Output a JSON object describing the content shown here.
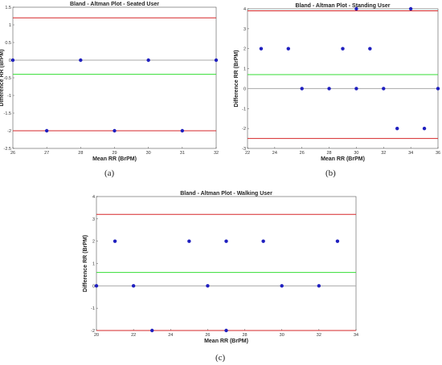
{
  "chart_data": [
    {
      "type": "scatter",
      "title": "Bland - Altman Plot - Seated User",
      "xlabel": "Mean RR (BrPM)",
      "ylabel": "Difference RR (BrPM)",
      "caption": "(a)",
      "xlim": [
        26,
        32
      ],
      "ylim": [
        -2.5,
        1.5
      ],
      "xticks": [
        "26",
        "27",
        "28",
        "29",
        "30",
        "31",
        "32"
      ],
      "yticks": [
        "1.5",
        "1",
        "0.5",
        "0",
        "-0.5",
        "-1",
        "-1.5",
        "-2",
        "-2.5"
      ],
      "points": [
        [
          26,
          0
        ],
        [
          28,
          0
        ],
        [
          30,
          0
        ],
        [
          32,
          0
        ],
        [
          27,
          -2
        ],
        [
          29,
          -2
        ],
        [
          31,
          -2
        ]
      ],
      "hlines": [
        {
          "y": 1.2,
          "color": "#d62728"
        },
        {
          "y": 0,
          "color": "#aaaaaa"
        },
        {
          "y": -0.4,
          "color": "#33dd33"
        },
        {
          "y": -2,
          "color": "#d62728"
        }
      ]
    },
    {
      "type": "scatter",
      "title": "Bland - Altman Plot - Standing User",
      "xlabel": "Mean RR (BrPM)",
      "ylabel": "Difference RR (BrPM)",
      "caption": "(b)",
      "xlim": [
        22,
        36
      ],
      "ylim": [
        -3,
        4
      ],
      "xticks": [
        "22",
        "24",
        "26",
        "28",
        "30",
        "32",
        "34",
        "36"
      ],
      "yticks": [
        "4",
        "3",
        "2",
        "1",
        "0",
        "-1",
        "-2",
        "-3"
      ],
      "points": [
        [
          23,
          2
        ],
        [
          25,
          2
        ],
        [
          29,
          2
        ],
        [
          31,
          2
        ],
        [
          30,
          4
        ],
        [
          34,
          4
        ],
        [
          26,
          0
        ],
        [
          28,
          0
        ],
        [
          30,
          0
        ],
        [
          32,
          0
        ],
        [
          36,
          0
        ],
        [
          33,
          -2
        ],
        [
          35,
          -2
        ]
      ],
      "hlines": [
        {
          "y": 3.9,
          "color": "#d62728"
        },
        {
          "y": 0,
          "color": "#aaaaaa"
        },
        {
          "y": 0.7,
          "color": "#33dd33"
        },
        {
          "y": -2.5,
          "color": "#d62728"
        }
      ]
    },
    {
      "type": "scatter",
      "title": "Bland - Altman Plot - Walking User",
      "xlabel": "Mean RR (BrPM)",
      "ylabel": "Difference RR (BrPM)",
      "caption": "(c)",
      "xlim": [
        20,
        34
      ],
      "ylim": [
        -2,
        4
      ],
      "xticks": [
        "20",
        "22",
        "24",
        "26",
        "28",
        "30",
        "32",
        "34"
      ],
      "yticks": [
        "4",
        "3",
        "2",
        "1",
        "0",
        "-1",
        "-2"
      ],
      "points": [
        [
          20,
          0
        ],
        [
          21,
          2
        ],
        [
          22,
          0
        ],
        [
          23,
          -2
        ],
        [
          25,
          2
        ],
        [
          26,
          0
        ],
        [
          27,
          2
        ],
        [
          27,
          -2
        ],
        [
          29,
          2
        ],
        [
          30,
          0
        ],
        [
          32,
          0
        ],
        [
          33,
          2
        ]
      ],
      "hlines": [
        {
          "y": 3.2,
          "color": "#d62728"
        },
        {
          "y": 0,
          "color": "#aaaaaa"
        },
        {
          "y": 0.6,
          "color": "#33dd33"
        },
        {
          "y": -2,
          "color": "#d62728"
        }
      ]
    }
  ],
  "colors": {
    "point": "#1f1fbf",
    "frame": "#555555"
  }
}
